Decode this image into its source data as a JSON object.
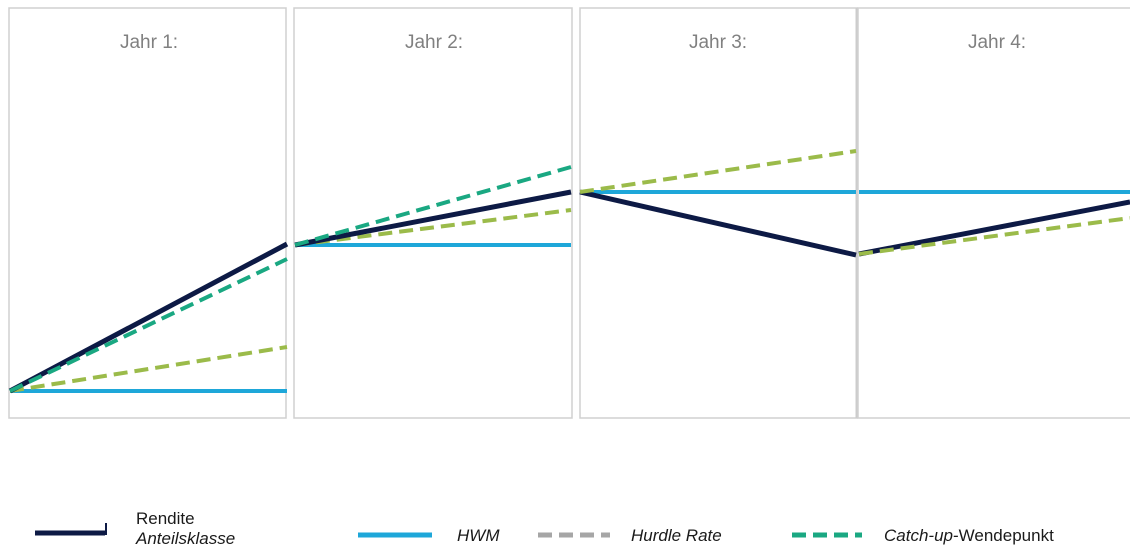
{
  "panels": [
    {
      "label": "Jahr 1:"
    },
    {
      "label": "Jahr 2:"
    },
    {
      "label": "Jahr 3:"
    },
    {
      "label": "Jahr 4:"
    }
  ],
  "legend": {
    "rendite": {
      "line1": "Rendite",
      "line2": "Anteilsklasse"
    },
    "hwm": "HWM",
    "hurdle": "Hurdle Rate",
    "catchup": {
      "prefix": "Catch-up",
      "suffix": "-Wendepunkt"
    }
  },
  "colors": {
    "rendite": "#0d1a45",
    "hwm": "#1ea7d9",
    "hurdle_legend": "#a6a6a6",
    "hurdle_line": "#9bbb4a",
    "catchup": "#1aa882",
    "panel_border": "#d0d0d0",
    "label": "#808080"
  }
}
